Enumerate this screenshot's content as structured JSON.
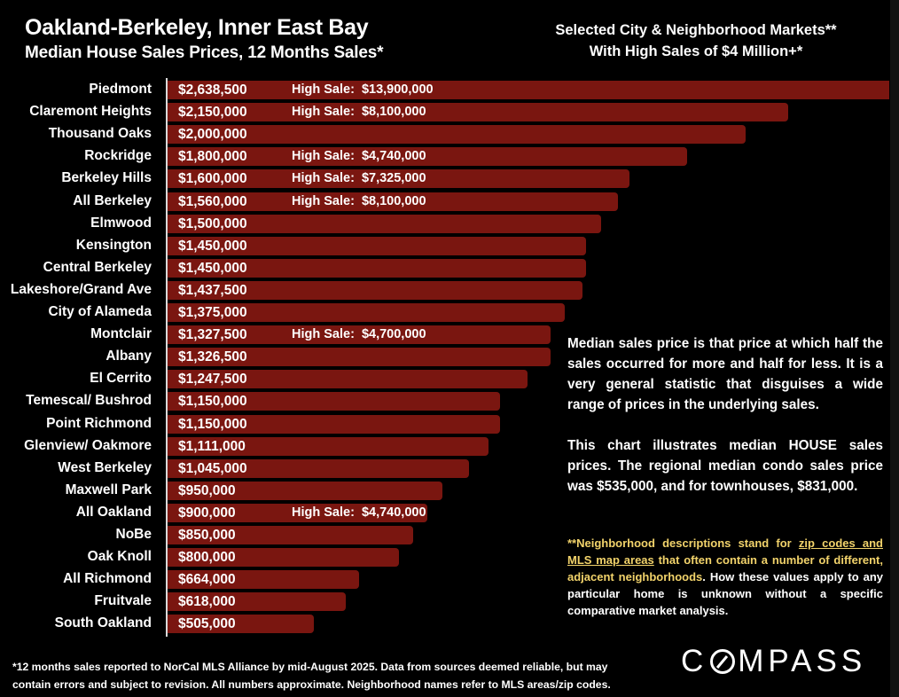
{
  "header": {
    "title": "Oakland-Berkeley, Inner East Bay",
    "subtitle": "Median House Sales Prices, 12 Months Sales*",
    "right_title_line1": "Selected City & Neighborhood Markets**",
    "right_title_line2": "With High Sales of $4 Million+*"
  },
  "chart_data": {
    "type": "bar",
    "orientation": "horizontal",
    "title": "Median House Sales Prices, 12 Months Sales*",
    "xlabel": "",
    "ylabel": "",
    "xlim": [
      0,
      2500000
    ],
    "grid": false,
    "bar_color": "#7a1610",
    "high_sale_prefix": "High Sale:",
    "categories": [
      "Piedmont",
      "Claremont Heights",
      "Thousand Oaks",
      "Rockridge",
      "Berkeley Hills",
      "All Berkeley",
      "Elmwood",
      "Kensington",
      "Central Berkeley",
      "Lakeshore/Grand Ave",
      "City of Alameda",
      "Montclair",
      "Albany",
      "El Cerrito",
      "Temescal/ Bushrod",
      "Point Richmond",
      "Glenview/ Oakmore",
      "West Berkeley",
      "Maxwell Park",
      "All Oakland",
      "NoBe",
      "Oak Knoll",
      "All Richmond",
      "Fruitvale",
      "South Oakland"
    ],
    "values": [
      2638500,
      2150000,
      2000000,
      1800000,
      1600000,
      1560000,
      1500000,
      1450000,
      1450000,
      1437500,
      1375000,
      1327500,
      1326500,
      1247500,
      1150000,
      1150000,
      1111000,
      1045000,
      950000,
      900000,
      850000,
      800000,
      664000,
      618000,
      505000
    ],
    "value_labels": [
      "$2,638,500",
      "$2,150,000",
      "$2,000,000",
      "$1,800,000",
      "$1,600,000",
      "$1,560,000",
      "$1,500,000",
      "$1,450,000",
      "$1,450,000",
      "$1,437,500",
      "$1,375,000",
      "$1,327,500",
      "$1,326,500",
      "$1,247,500",
      "$1,150,000",
      "$1,150,000",
      "$1,111,000",
      "$1,045,000",
      "$950,000",
      "$900,000",
      "$850,000",
      "$800,000",
      "$664,000",
      "$618,000",
      "$505,000"
    ],
    "high_sales": [
      "$13,900,000",
      "$8,100,000",
      "",
      "$4,740,000",
      "$7,325,000",
      "$8,100,000",
      "",
      "",
      "",
      "",
      "",
      "$4,700,000",
      "",
      "",
      "",
      "",
      "",
      "",
      "",
      "$4,740,000",
      "",
      "",
      "",
      "",
      ""
    ]
  },
  "notes": {
    "para1": "Median sales price is that price at which half the sales occurred for more and half for less. It is a very general statistic that disguises a wide range of prices in the underlying sales.",
    "para2": "This chart illustrates median HOUSE sales prices. The regional median condo sales price was $535,000, and for townhouses, $831,000.",
    "para3_prefix": "**Neighborhood descriptions stand for ",
    "para3_link": "zip codes and MLS map areas",
    "para3_mid": " that often contain a number of different, adjacent neighborhoods",
    "para3_suffix": ". How these values apply to any particular home is unknown without a specific comparative market analysis."
  },
  "footer": {
    "line1": "*12 months sales reported to NorCal MLS Alliance by mid-August 2025. Data from sources deemed reliable, but may",
    "line2": "contain errors and subject to revision. All numbers approximate. Neighborhood names refer to MLS areas/zip codes.",
    "logo_left": "C",
    "logo_right": "MPASS"
  }
}
